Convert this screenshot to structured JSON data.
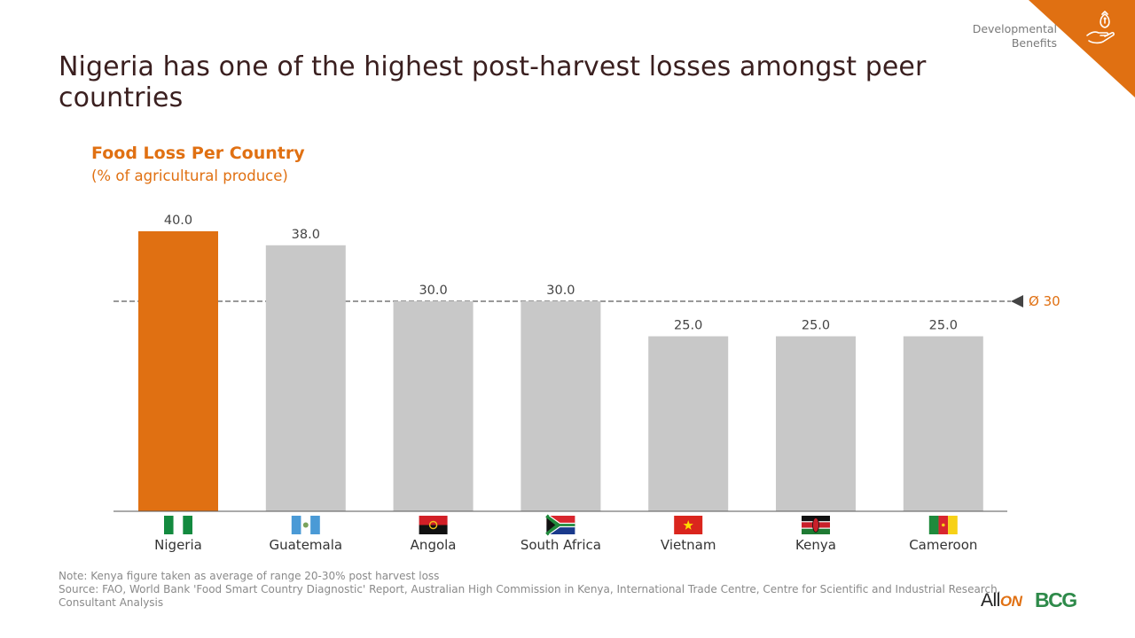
{
  "slide": {
    "title": "Nigeria has one of the highest post-harvest losses amongst peer countries",
    "section_label": "Developmental Benefits",
    "section_icon": "hand-money-bag-icon",
    "corner_color": "#e07012"
  },
  "chart_data": {
    "type": "bar",
    "title": "Food Loss Per Country",
    "subtitle": "(% of agricultural produce)",
    "categories": [
      "Nigeria",
      "Guatemala",
      "Angola",
      "South Africa",
      "Vietnam",
      "Kenya",
      "Cameroon"
    ],
    "values": [
      40.0,
      38.0,
      30.0,
      30.0,
      25.0,
      25.0,
      25.0
    ],
    "value_labels": [
      "40.0",
      "38.0",
      "30.0",
      "30.0",
      "25.0",
      "25.0",
      "25.0"
    ],
    "ylim": [
      0,
      40
    ],
    "average": {
      "value": 30,
      "label": "Ø 30"
    },
    "highlight_color": "#e07012",
    "bar_color": "#c8c8c8",
    "highlight_index": 0,
    "flags": [
      "nigeria-flag",
      "guatemala-flag",
      "angola-flag",
      "south-africa-flag",
      "vietnam-flag",
      "kenya-flag",
      "cameroon-flag"
    ],
    "grid": false
  },
  "footer": {
    "note": "Note: Kenya figure taken as average of range 20-30% post harvest loss",
    "source": "Source: FAO, World Bank 'Food Smart Country Diagnostic' Report, Australian High Commission in Kenya, International Trade Centre, Centre for Scientific and Industrial Research,",
    "source_cont": "Consultant Analysis"
  },
  "logos": {
    "allon_prefix": "All",
    "allon_suffix": "ON",
    "bcg": "BCG"
  }
}
